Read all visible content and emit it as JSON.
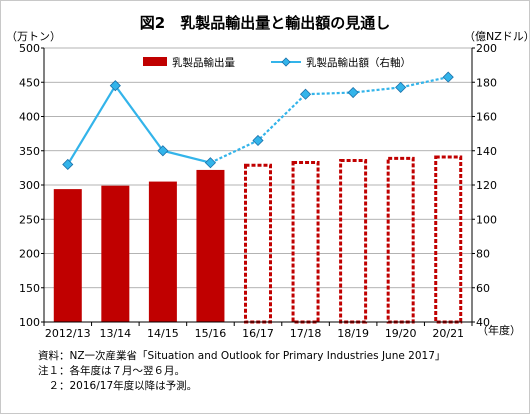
{
  "chart_data": {
    "type": "bar",
    "title": "図2　乳製品輸出量と輸出額の見通し",
    "left_unit": "（万トン）",
    "right_unit": "（億NZドル）",
    "x_unit": "（年度）",
    "categories": [
      "2012/13",
      "13/14",
      "14/15",
      "15/16",
      "16/17",
      "17/18",
      "18/19",
      "19/20",
      "20/21"
    ],
    "y_left": {
      "min": 100,
      "max": 500,
      "ticks": [
        100,
        150,
        200,
        250,
        300,
        350,
        400,
        450,
        500
      ]
    },
    "y_right": {
      "min": 40,
      "max": 200,
      "ticks": [
        40,
        60,
        80,
        100,
        120,
        140,
        160,
        180,
        200
      ]
    },
    "grid": true,
    "series": [
      {
        "name": "乳製品輸出量",
        "kind": "bar",
        "axis": "left",
        "color": "#c00000",
        "values": [
          294,
          299,
          305,
          322,
          331,
          335,
          338,
          341,
          343
        ],
        "forecast_from_index": 4
      },
      {
        "name": "乳製品輸出額（右軸）",
        "kind": "line",
        "axis": "right",
        "color": "#33b4ea",
        "values": [
          132,
          178,
          140,
          133,
          146,
          173,
          174,
          177,
          183
        ],
        "forecast_from_index": 4
      }
    ]
  },
  "notes": [
    "資料：NZ一次産業省「Situation and Outlook for Primary Industries June 2017」",
    "注１：各年度は７月～翌６月。",
    "　２：2016/17年度以降は予測。"
  ]
}
